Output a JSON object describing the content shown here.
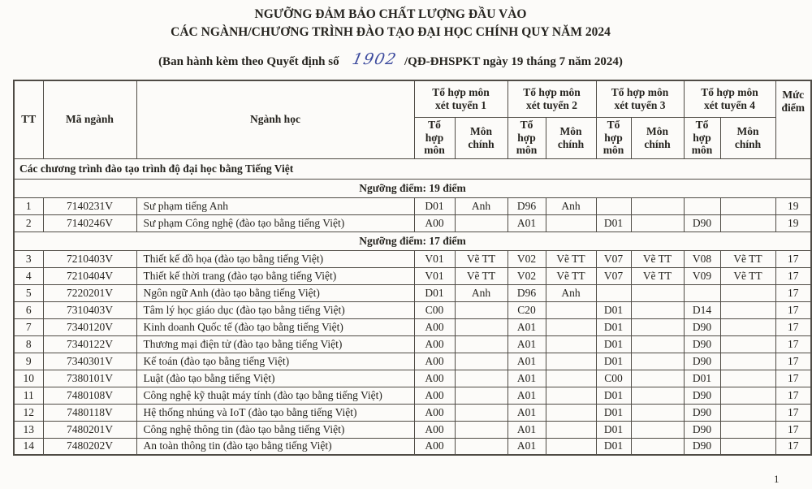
{
  "page": {
    "title_line1": "NGƯỠNG ĐẢM BẢO CHẤT LƯỢNG ĐẦU VÀO",
    "title_line2": "CÁC NGÀNH/CHƯƠNG TRÌNH ĐÀO TẠO ĐẠI HỌC CHÍNH QUY NĂM 2024",
    "decree_prefix": "(Ban hành kèm theo Quyết định số",
    "decree_number_handwritten": "1902",
    "decree_suffix": "/QĐ-ĐHSPKT ngày 19 tháng 7 năm 2024)",
    "page_number": "1"
  },
  "colors": {
    "ink": "#26241f",
    "handwriting_blue": "#3d4b9e",
    "border": "#4f4b45",
    "paper": "#fcfbf9"
  },
  "table": {
    "headers": {
      "tt": "TT",
      "ma_nganh": "Mã ngành",
      "nganh_hoc": "Ngành học",
      "groups": [
        "Tổ hợp môn\nxét tuyển 1",
        "Tổ hợp môn\nxét tuyển 2",
        "Tổ hợp môn\nxét tuyển 3",
        "Tổ hợp môn\nxét tuyển 4"
      ],
      "sub_to_hop": "Tổ\nhợp\nmôn",
      "sub_mon_chinh": "Môn\nchính",
      "muc_diem": "Mức\nđiểm"
    },
    "rows": [
      {
        "type": "section",
        "label": "Các chương trình đào tạo trình độ đại học bằng Tiếng Việt"
      },
      {
        "type": "threshold",
        "label": "Ngưỡng điểm: 19 điểm"
      },
      {
        "type": "data",
        "tt": "1",
        "code": "7140231V",
        "name": "Sư phạm tiếng Anh",
        "c": [
          "D01",
          "Anh",
          "D96",
          "Anh",
          "",
          "",
          "",
          ""
        ],
        "score": "19"
      },
      {
        "type": "data",
        "tt": "2",
        "code": "7140246V",
        "name": "Sư phạm Công nghệ (đào tạo bằng tiếng Việt)",
        "c": [
          "A00",
          "",
          "A01",
          "",
          "D01",
          "",
          "D90",
          ""
        ],
        "score": "19"
      },
      {
        "type": "threshold",
        "label": "Ngưỡng điểm: 17 điểm"
      },
      {
        "type": "data",
        "tt": "3",
        "code": "7210403V",
        "name": "Thiết kế đồ họa (đào tạo bằng tiếng Việt)",
        "c": [
          "V01",
          "Vẽ TT",
          "V02",
          "Vẽ TT",
          "V07",
          "Vẽ TT",
          "V08",
          "Vẽ TT"
        ],
        "score": "17"
      },
      {
        "type": "data",
        "tt": "4",
        "code": "7210404V",
        "name": "Thiết kế thời trang (đào tạo bằng tiếng Việt)",
        "c": [
          "V01",
          "Vẽ TT",
          "V02",
          "Vẽ TT",
          "V07",
          "Vẽ TT",
          "V09",
          "Vẽ TT"
        ],
        "score": "17"
      },
      {
        "type": "data",
        "tt": "5",
        "code": "7220201V",
        "name": "Ngôn ngữ Anh (đào tạo bằng tiếng Việt)",
        "c": [
          "D01",
          "Anh",
          "D96",
          "Anh",
          "",
          "",
          "",
          ""
        ],
        "score": "17"
      },
      {
        "type": "data",
        "tt": "6",
        "code": "7310403V",
        "name": "Tâm lý học giáo dục (đào tạo bằng tiếng Việt)",
        "c": [
          "C00",
          "",
          "C20",
          "",
          "D01",
          "",
          "D14",
          ""
        ],
        "score": "17"
      },
      {
        "type": "data",
        "tt": "7",
        "code": "7340120V",
        "name": "Kinh doanh Quốc tế (đào tạo bằng tiếng Việt)",
        "c": [
          "A00",
          "",
          "A01",
          "",
          "D01",
          "",
          "D90",
          ""
        ],
        "score": "17"
      },
      {
        "type": "data",
        "tt": "8",
        "code": "7340122V",
        "name": "Thương mại điện tử (đào tạo bằng tiếng Việt)",
        "c": [
          "A00",
          "",
          "A01",
          "",
          "D01",
          "",
          "D90",
          ""
        ],
        "score": "17"
      },
      {
        "type": "data",
        "tt": "9",
        "code": "7340301V",
        "name": "Kế toán (đào tạo bằng tiếng Việt)",
        "c": [
          "A00",
          "",
          "A01",
          "",
          "D01",
          "",
          "D90",
          ""
        ],
        "score": "17"
      },
      {
        "type": "data",
        "tt": "10",
        "code": "7380101V",
        "name": "Luật (đào tạo bằng tiếng Việt)",
        "c": [
          "A00",
          "",
          "A01",
          "",
          "C00",
          "",
          "D01",
          ""
        ],
        "score": "17"
      },
      {
        "type": "data",
        "tt": "11",
        "code": "7480108V",
        "name": "Công nghệ kỹ thuật máy tính (đào tạo bằng tiếng Việt)",
        "c": [
          "A00",
          "",
          "A01",
          "",
          "D01",
          "",
          "D90",
          ""
        ],
        "score": "17"
      },
      {
        "type": "data",
        "tt": "12",
        "code": "7480118V",
        "name": "Hệ thống nhúng và IoT (đào tạo bằng tiếng Việt)",
        "c": [
          "A00",
          "",
          "A01",
          "",
          "D01",
          "",
          "D90",
          ""
        ],
        "score": "17"
      },
      {
        "type": "data",
        "tt": "13",
        "code": "7480201V",
        "name": "Công nghệ thông tin (đào tạo bằng tiếng Việt)",
        "c": [
          "A00",
          "",
          "A01",
          "",
          "D01",
          "",
          "D90",
          ""
        ],
        "score": "17"
      },
      {
        "type": "data",
        "tt": "14",
        "code": "7480202V",
        "name": "An toàn thông tin (đào tạo bằng tiếng Việt)",
        "c": [
          "A00",
          "",
          "A01",
          "",
          "D01",
          "",
          "D90",
          ""
        ],
        "score": "17"
      }
    ]
  }
}
